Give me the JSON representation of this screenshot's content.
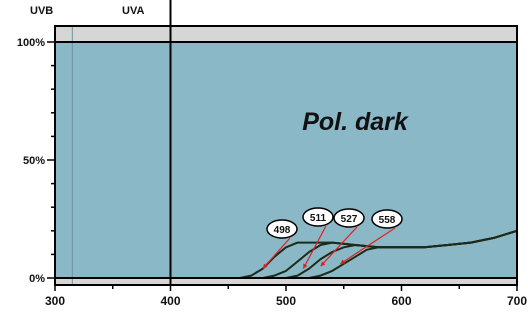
{
  "chart_data": {
    "type": "line",
    "annotation": "Pol. dark",
    "band_labels": [
      "UVB",
      "UVA"
    ],
    "xlim": [
      300,
      700
    ],
    "ylim": [
      0,
      100
    ],
    "xticks": [
      300,
      400,
      500,
      600,
      700
    ],
    "xtick_labels": [
      "300",
      "400",
      "500",
      "600",
      "700"
    ],
    "yticks": [
      0,
      50,
      100
    ],
    "ytick_labels": [
      "0%",
      "50%",
      "100%"
    ],
    "uvb_uva_boundary": 315,
    "uva_visible_boundary": 400,
    "series": [
      {
        "name": "498",
        "x": [
          300,
          460,
          470,
          480,
          490,
          500,
          510,
          520,
          540,
          560,
          580,
          600,
          620,
          640,
          660,
          680,
          700
        ],
        "y": [
          0,
          0,
          1,
          4,
          9,
          13,
          15,
          15,
          15,
          14,
          13,
          13,
          13,
          14,
          15,
          17,
          20
        ]
      },
      {
        "name": "511",
        "x": [
          300,
          480,
          490,
          500,
          510,
          520,
          530,
          540,
          560,
          580,
          600,
          620,
          640,
          660,
          680,
          700
        ],
        "y": [
          0,
          0,
          1,
          3,
          7,
          11,
          14,
          15,
          14,
          13,
          13,
          13,
          14,
          15,
          17,
          20
        ]
      },
      {
        "name": "527",
        "x": [
          300,
          500,
          510,
          520,
          530,
          540,
          550,
          560,
          580,
          600,
          620,
          640,
          660,
          680,
          700
        ],
        "y": [
          0,
          0,
          1,
          4,
          8,
          11,
          13,
          14,
          13,
          13,
          13,
          14,
          15,
          17,
          20
        ]
      },
      {
        "name": "558",
        "x": [
          300,
          520,
          530,
          540,
          550,
          560,
          570,
          580,
          590,
          600,
          620,
          640,
          660,
          680,
          700
        ],
        "y": [
          0,
          0,
          1,
          3,
          6,
          9,
          12,
          13,
          13,
          13,
          13,
          14,
          15,
          17,
          20
        ]
      }
    ],
    "callouts": [
      {
        "label": "498",
        "target_x": 480,
        "target_y": 4
      },
      {
        "label": "511",
        "target_x": 515,
        "target_y": 4
      },
      {
        "label": "527",
        "target_x": 530,
        "target_y": 5
      },
      {
        "label": "558",
        "target_x": 547,
        "target_y": 6
      }
    ],
    "colors": {
      "plot_bg": "#8ab8c6",
      "band_bg": "#d6d6d6",
      "line": "#1e2a1a",
      "arrow": "#e02020"
    },
    "grid": false,
    "legend": "none"
  }
}
